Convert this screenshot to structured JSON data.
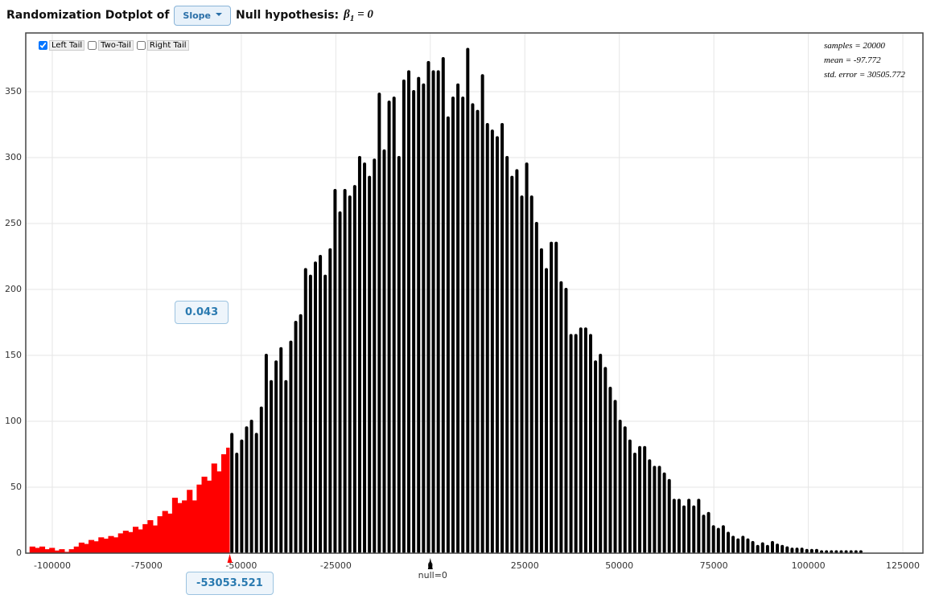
{
  "header": {
    "title": "Randomization Dotplot of",
    "statistic": "Slope",
    "null_label": "Null hypothesis:",
    "symbol": "β",
    "subscript": "1",
    "equals": " = 0"
  },
  "controls": [
    {
      "label": "Left Tail",
      "checked": true
    },
    {
      "label": "Two-Tail",
      "checked": false
    },
    {
      "label": "Right Tail",
      "checked": false
    }
  ],
  "stats": [
    "samples = 20000",
    "mean = -97.772",
    "std. error = 30505.772"
  ],
  "chart_data": {
    "type": "dotplot",
    "xlim": [
      -107024,
      130310
    ],
    "xticks": [
      -100000,
      -75000,
      -50000,
      -25000,
      0,
      25000,
      50000,
      75000,
      100000,
      125000
    ],
    "ylim": [
      0,
      394.5
    ],
    "yticks": [
      0,
      50,
      100,
      150,
      200,
      250,
      300,
      350
    ],
    "grid": true,
    "threshold": -53053.521,
    "proportion": 0.043,
    "null_value": 0,
    "null_label": "null=0",
    "series": [
      {
        "color": "#ff0000",
        "fill": true,
        "x": [
          -105800,
          -104500,
          -103200,
          -101900,
          -100600,
          -99300,
          -98000,
          -96700,
          -95400,
          -94100,
          -92800,
          -91500,
          -90200,
          -88900,
          -87600,
          -86300,
          -85000,
          -83700,
          -82400,
          -81100,
          -79800,
          -78500,
          -77200,
          -75900,
          -74600,
          -73300,
          -72000,
          -70700,
          -69400,
          -68100,
          -66800,
          -65500,
          -64200,
          -62900,
          -61600,
          -60300,
          -59000,
          -57700,
          -56400,
          -55100,
          -53800
        ],
        "values": [
          5,
          4,
          5,
          3,
          4,
          2,
          3,
          1,
          3,
          5,
          8,
          7,
          10,
          9,
          12,
          11,
          13,
          12,
          15,
          17,
          16,
          20,
          18,
          22,
          25,
          21,
          28,
          32,
          30,
          42,
          38,
          40,
          48,
          40,
          52,
          58,
          55,
          68,
          62,
          75,
          80
        ]
      },
      {
        "color": "#000000",
        "fill": false,
        "x": [
          -52500,
          -51200,
          -49900,
          -48600,
          -47300,
          -46000,
          -44700,
          -43400,
          -42100,
          -40800,
          -39500,
          -38200,
          -36900,
          -35600,
          -34300,
          -33000,
          -31700,
          -30400,
          -29100,
          -27800,
          -26500,
          -25200,
          -23900,
          -22600,
          -21300,
          -20000,
          -18700,
          -17400,
          -16100,
          -14800,
          -13500,
          -12200,
          -10900,
          -9600,
          -8300,
          -7000,
          -5700,
          -4400,
          -3100,
          -1800,
          -500,
          800,
          2100,
          3400,
          4700,
          6000,
          7300,
          8600,
          9900,
          11200,
          12500,
          13800,
          15100,
          16400,
          17700,
          19000,
          20300,
          21600,
          22900,
          24200,
          25500,
          26800,
          28100,
          29400,
          30700,
          32000,
          33300,
          34600,
          35900,
          37200,
          38500,
          39800,
          41100,
          42400,
          43700,
          45000,
          46300,
          47600,
          48900,
          50200,
          51500,
          52800,
          54100,
          55400,
          56700,
          58000,
          59300,
          60600,
          61900,
          63200,
          64500,
          65800,
          67100,
          68400,
          69700,
          71000,
          72300,
          73600,
          74900,
          76200,
          77500,
          78800,
          80100,
          81400,
          82700,
          84000,
          85300,
          86600,
          87900,
          89200,
          90500,
          91800,
          93100,
          94400,
          95700,
          97000,
          98300,
          99600,
          100900,
          102200,
          103500,
          104800,
          106100,
          107400,
          108700,
          110000,
          111300,
          112600,
          113900
        ],
        "values": [
          90,
          75,
          85,
          95,
          100,
          90,
          110,
          150,
          130,
          145,
          155,
          130,
          160,
          175,
          180,
          215,
          210,
          220,
          225,
          210,
          230,
          275,
          258,
          275,
          270,
          278,
          300,
          295,
          285,
          298,
          348,
          305,
          342,
          345,
          300,
          358,
          365,
          350,
          360,
          355,
          372,
          365,
          365,
          375,
          330,
          345,
          355,
          345,
          382,
          340,
          335,
          362,
          325,
          320,
          315,
          325,
          300,
          285,
          290,
          270,
          295,
          270,
          250,
          230,
          215,
          235,
          235,
          205,
          200,
          165,
          165,
          170,
          170,
          165,
          145,
          150,
          140,
          125,
          115,
          100,
          95,
          85,
          75,
          80,
          80,
          70,
          65,
          65,
          60,
          55,
          40,
          40,
          35,
          40,
          35,
          40,
          28,
          30,
          20,
          18,
          20,
          15,
          12,
          10,
          12,
          10,
          8,
          5,
          7,
          5,
          8,
          6,
          5,
          4,
          3,
          3,
          3,
          2,
          2,
          2,
          1,
          1,
          1,
          1,
          1,
          1,
          1,
          1,
          1
        ]
      }
    ]
  }
}
